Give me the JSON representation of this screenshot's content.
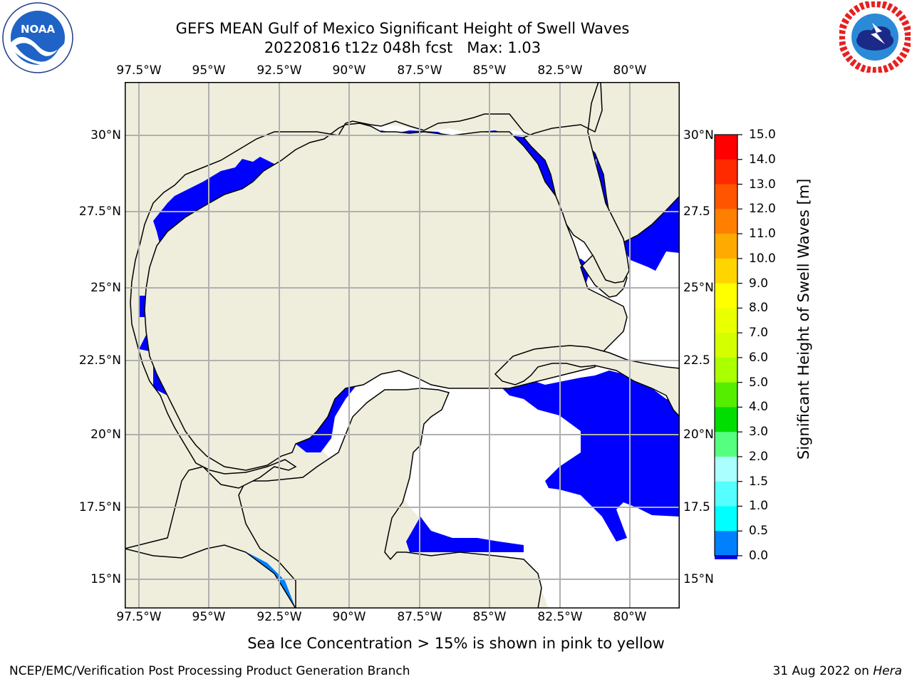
{
  "title": {
    "line1": "GEFS MEAN Gulf of Mexico Significant Height of Swell Waves",
    "line2": "20220816 t12z 048h fcst   Max: 1.03"
  },
  "logos": {
    "left": {
      "text": "NOAA",
      "ring_text": "NATIONAL OCEANIC AND ATMOSPHERIC ADMINISTRATION · U.S. DEPARTMENT OF COMMERCE"
    },
    "right": {
      "ring_text": "NATIONAL WEATHER SERVICE"
    }
  },
  "map": {
    "lon_ticks": [
      "97.5°W",
      "95°W",
      "92.5°W",
      "90°W",
      "87.5°W",
      "85°W",
      "82.5°W",
      "80°W"
    ],
    "lat_ticks_left": [
      "30°N",
      "27.5°N",
      "25°N",
      "22.5°N",
      "20°N",
      "17.5°N",
      "15°N"
    ],
    "lat_ticks_right": [
      "30°N",
      "27.5",
      "25°N",
      "22.5",
      "20°N",
      "17.5",
      "15°N"
    ],
    "lon_values": [
      -97.5,
      -95,
      -92.5,
      -90,
      -87.5,
      -85,
      -82.5,
      -80
    ],
    "lat_values": [
      30,
      27.5,
      25,
      22.5,
      20,
      17.5,
      15
    ],
    "extent": {
      "lon": [
        -98,
        -78.3
      ],
      "lat": [
        14,
        31.8
      ]
    },
    "colors": {
      "land": "#efeedd",
      "ocean_low": "#0000ff",
      "ocean_mid": "#0080ff",
      "grid": "#b0b0b0"
    }
  },
  "colorbar": {
    "label": "Significant Height of Swell Waves [m]",
    "ticks": [
      "15.0",
      "14.0",
      "13.0",
      "12.0",
      "11.0",
      "10.0",
      "9.0",
      "8.0",
      "7.0",
      "6.0",
      "5.0",
      "4.0",
      "3.0",
      "2.0",
      "1.5",
      "1.0",
      "0.5",
      "0.0"
    ],
    "colors_top_to_bottom": [
      "#ff0000",
      "#ff2a00",
      "#ff5500",
      "#ff8000",
      "#ffaa00",
      "#ffd500",
      "#ffff00",
      "#eaff00",
      "#d4ff00",
      "#aaff00",
      "#55ee00",
      "#00dd00",
      "#55ff80",
      "#aaffff",
      "#55ffff",
      "#00ffff",
      "#0080ff",
      "#0000ff"
    ]
  },
  "note": "Sea Ice Concentration > 15% is shown in pink to yellow",
  "footer": {
    "left": "NCEP/EMC/Verification Post Processing Product Generation Branch",
    "right_date": "31 Aug 2022 on ",
    "right_host": "Hera"
  }
}
